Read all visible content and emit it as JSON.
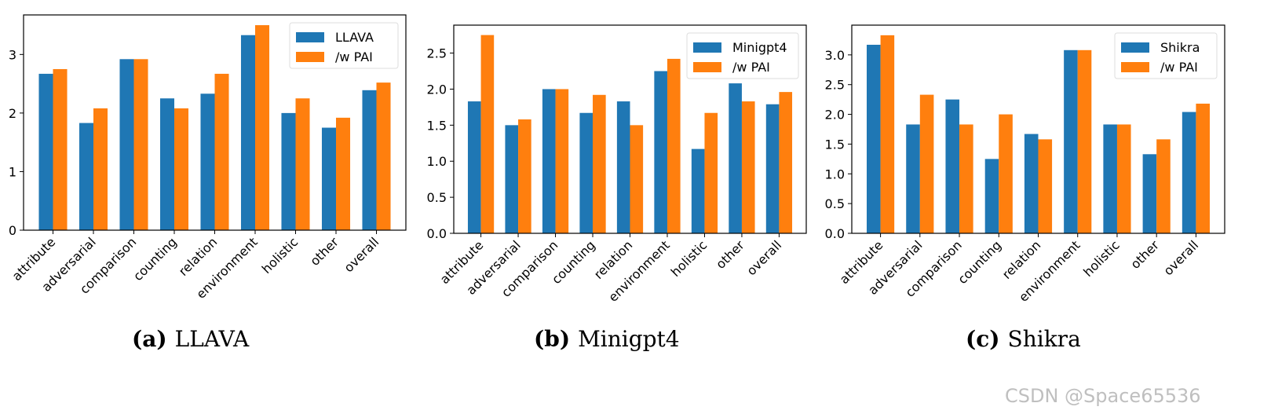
{
  "colors": {
    "base": "#1f77b4",
    "pai": "#ff7f0e"
  },
  "watermark": "CSDN @Space65536",
  "chart_data": [
    {
      "type": "bar",
      "caption_label": "(a)",
      "caption": "LLAVA",
      "categories": [
        "attribute",
        "adversarial",
        "comparison",
        "counting",
        "relation",
        "environment",
        "holistic",
        "other",
        "overall"
      ],
      "series": [
        {
          "name": "LLAVA",
          "values": [
            2.67,
            1.83,
            2.92,
            2.25,
            2.33,
            3.33,
            2.0,
            1.75,
            2.39
          ]
        },
        {
          "name": "/w PAI",
          "values": [
            2.75,
            2.08,
            2.92,
            2.08,
            2.67,
            3.5,
            2.25,
            1.92,
            2.52
          ]
        }
      ],
      "ylim": [
        0,
        3.675
      ],
      "yticks": [
        "0",
        "1",
        "2",
        "3"
      ],
      "legend": "top-right",
      "grid": false
    },
    {
      "type": "bar",
      "caption_label": "(b)",
      "caption": "Minigpt4",
      "categories": [
        "attribute",
        "adversarial",
        "comparison",
        "counting",
        "relation",
        "environment",
        "holistic",
        "other",
        "overall"
      ],
      "series": [
        {
          "name": "Minigpt4",
          "values": [
            1.83,
            1.5,
            2.0,
            1.67,
            1.83,
            2.25,
            1.17,
            2.08,
            1.79
          ]
        },
        {
          "name": "/w PAI",
          "values": [
            2.75,
            1.58,
            2.0,
            1.92,
            1.5,
            2.42,
            1.67,
            1.83,
            1.96
          ]
        }
      ],
      "ylim": [
        0,
        2.8875
      ],
      "yticks": [
        "0.0",
        "0.5",
        "1.0",
        "1.5",
        "2.0",
        "2.5"
      ],
      "legend": "top-right",
      "grid": false
    },
    {
      "type": "bar",
      "caption_label": "(c)",
      "caption": "Shikra",
      "categories": [
        "attribute",
        "adversarial",
        "comparison",
        "counting",
        "relation",
        "environment",
        "holistic",
        "other",
        "overall"
      ],
      "series": [
        {
          "name": "Shikra",
          "values": [
            3.17,
            1.83,
            2.25,
            1.25,
            1.67,
            3.08,
            1.83,
            1.33,
            2.04
          ]
        },
        {
          "name": "/w PAI",
          "values": [
            3.33,
            2.33,
            1.83,
            2.0,
            1.58,
            3.08,
            1.83,
            1.58,
            2.18
          ]
        }
      ],
      "ylim": [
        0,
        3.5
      ],
      "yticks": [
        "0.0",
        "0.5",
        "1.0",
        "1.5",
        "2.0",
        "2.5",
        "3.0"
      ],
      "legend": "top-right",
      "grid": false
    }
  ]
}
